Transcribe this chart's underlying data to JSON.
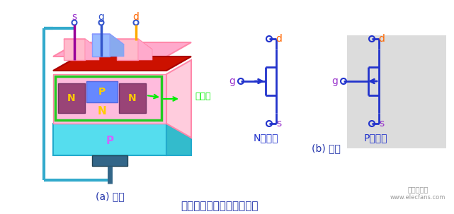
{
  "title": "结型场效应管的结构和符号",
  "subtitle_a": "(a) 结构",
  "subtitle_b": "(b) 符号",
  "label_s": "s",
  "label_g": "g",
  "label_d": "d",
  "label_N": "N",
  "label_P": "P",
  "label_depletion": "耗尽层",
  "label_N_channel": "N沟道管",
  "label_P_channel": "P沟道管",
  "color_s_wire": "#990099",
  "color_g_wire": "#3355cc",
  "color_d_wire": "#ffaa00",
  "color_s_label": "#9933cc",
  "color_g_label": "#3355cc",
  "color_d_label_top": "#ff6600",
  "color_pink_main": "#ffbbdd",
  "color_pink_top": "#ffaacc",
  "color_pink_side": "#ffccdd",
  "color_cyan_base": "#44ddee",
  "color_cyan_wire": "#33aacc",
  "color_green_border": "#22cc22",
  "color_red_bar": "#cc1100",
  "color_purple_N": "#994477",
  "color_blue_P": "#6688ff",
  "color_yellow_label": "#ffcc00",
  "color_green_depletion": "#00ee00",
  "color_circuit": "#2233cc",
  "color_d_orange": "#ff6600",
  "color_s_purple": "#9933cc",
  "background": "#ffffff"
}
